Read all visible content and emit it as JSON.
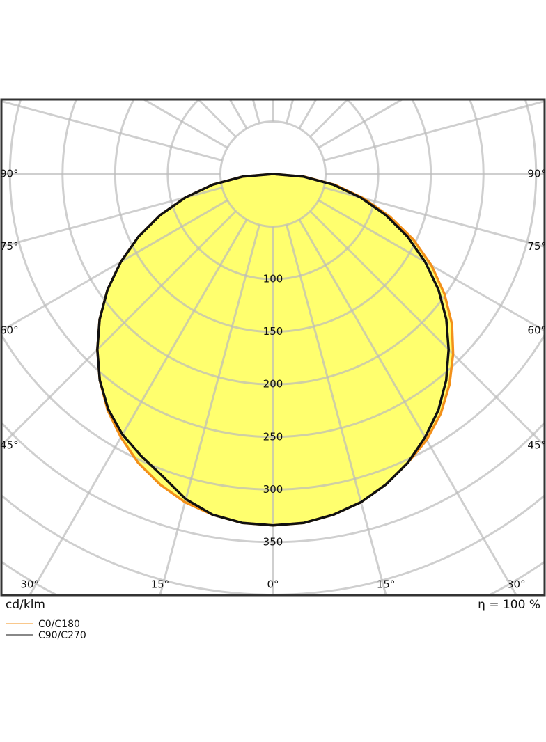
{
  "chart_data": {
    "type": "polar",
    "x": [
      -90,
      -85,
      -80,
      -75,
      -70,
      -65,
      -60,
      -55,
      -50,
      -45,
      -40,
      -35,
      -30,
      -25,
      -20,
      -15,
      -10,
      -5,
      0,
      5,
      10,
      15,
      20,
      25,
      30,
      35,
      40,
      45,
      50,
      55,
      60,
      65,
      70,
      75,
      80,
      85,
      90
    ],
    "series": [
      {
        "name": "C0/C180",
        "color": "#f39019",
        "values": [
          0,
          29,
          58,
          86,
          114,
          141,
          167,
          192,
          215,
          236,
          256,
          274,
          289,
          303,
          314,
          323,
          329,
          333,
          334,
          333,
          329,
          323,
          314,
          303,
          292,
          278,
          261,
          242,
          222,
          199,
          174,
          147,
          118,
          89,
          60,
          30,
          0
        ]
      },
      {
        "name": "C90/C270",
        "color": "#111111",
        "values": [
          0,
          29,
          58,
          86,
          114,
          141,
          167,
          192,
          215,
          236,
          256,
          273,
          286,
          296,
          306,
          320,
          329,
          333,
          334,
          333,
          329,
          323,
          314,
          303,
          289,
          274,
          256,
          236,
          215,
          192,
          167,
          141,
          114,
          86,
          58,
          29,
          0
        ]
      }
    ],
    "fill": "#ffff55",
    "rlim": [
      0,
      450
    ],
    "rticks": [
      {
        "value": 50,
        "label": null
      },
      100,
      150,
      200,
      250,
      300,
      350,
      {
        "value": 400,
        "label": null
      },
      {
        "value": 450,
        "label": null
      }
    ],
    "angle_ticks": [
      {
        "value": -165,
        "label": null
      },
      {
        "value": -150,
        "label": null
      },
      {
        "value": -135,
        "label": null
      },
      {
        "value": -120,
        "label": null
      },
      {
        "value": -105,
        "label": null
      },
      {
        "value": -90,
        "label": "90°"
      },
      {
        "value": -75,
        "label": "75°"
      },
      {
        "value": -60,
        "label": "60°"
      },
      {
        "value": -45,
        "label": "45°"
      },
      {
        "value": -30,
        "label": "30°"
      },
      {
        "value": -15,
        "label": "15°"
      },
      {
        "value": 0,
        "label": "0°"
      },
      {
        "value": 15,
        "label": "15°"
      },
      {
        "value": 30,
        "label": "30°"
      },
      {
        "value": 45,
        "label": "45°"
      },
      {
        "value": 60,
        "label": "60°"
      },
      {
        "value": 75,
        "label": "75°"
      },
      {
        "value": 90,
        "label": "90°"
      },
      {
        "value": 105,
        "label": null
      },
      {
        "value": 120,
        "label": null
      },
      {
        "value": 135,
        "label": null
      },
      {
        "value": 150,
        "label": null
      },
      {
        "value": 165,
        "label": null
      },
      {
        "value": 180,
        "label": null
      }
    ],
    "unit_label": "cd/klm",
    "efficiency_label": "η = 100 %",
    "grid": true
  }
}
